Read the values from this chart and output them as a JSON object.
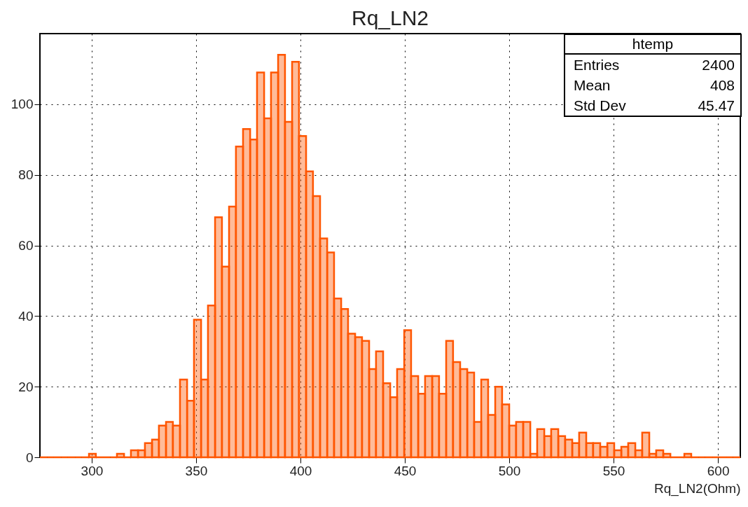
{
  "chart_data": {
    "type": "histogram",
    "title": "Rq_LN2",
    "xlabel": "Rq_LN2(Ohm)",
    "bins": [
      275.2,
      278.6,
      281.9,
      285.3,
      288.6,
      292.0,
      295.3,
      298.7,
      302.0,
      305.4,
      308.8,
      312.1,
      315.5,
      318.8,
      322.2,
      325.5,
      328.9,
      332.2,
      335.6,
      338.9,
      342.3,
      345.7,
      349.0,
      352.4,
      355.7,
      359.1,
      362.4,
      365.8,
      369.1,
      372.5,
      375.9,
      379.2,
      382.6,
      385.9,
      389.3,
      392.6,
      396.0,
      399.3,
      402.7,
      406.0,
      409.4,
      412.8,
      416.1,
      419.5,
      422.8,
      426.2,
      429.5,
      432.9,
      436.2,
      439.6,
      443.0,
      446.3,
      449.7,
      453.0,
      456.4,
      459.7,
      463.1,
      466.4,
      469.8,
      473.1,
      476.5,
      479.9,
      483.2,
      486.6,
      489.9,
      493.3,
      496.6,
      500.0,
      503.3,
      506.7,
      510.1,
      513.4,
      516.8,
      520.1,
      523.5,
      526.8,
      530.2,
      533.5,
      536.9,
      540.2,
      543.6,
      547.0,
      550.3,
      553.7,
      557.0,
      560.4,
      563.7,
      567.1,
      570.4,
      573.8,
      577.2,
      580.5,
      583.9,
      587.2,
      590.6,
      593.9,
      597.3,
      600.6,
      604.0,
      607.3,
      610.7
    ],
    "values": [
      0,
      0,
      0,
      0,
      0,
      0,
      0,
      1,
      0,
      0,
      0,
      1,
      0,
      2,
      2,
      4,
      5,
      9,
      10,
      9,
      22,
      16,
      39,
      22,
      43,
      68,
      54,
      71,
      88,
      93,
      90,
      109,
      96,
      109,
      114,
      95,
      112,
      91,
      81,
      74,
      62,
      58,
      45,
      42,
      35,
      34,
      33,
      25,
      30,
      21,
      17,
      25,
      36,
      23,
      18,
      23,
      23,
      18,
      33,
      27,
      25,
      24,
      10,
      22,
      12,
      20,
      15,
      9,
      10,
      10,
      1,
      8,
      6,
      8,
      6,
      5,
      4,
      7,
      4,
      4,
      3,
      4,
      2,
      3,
      4,
      2,
      7,
      1,
      2,
      1,
      0,
      0,
      1,
      0,
      0,
      0,
      0,
      0,
      0,
      0
    ],
    "color": "#ff5500",
    "xlim": [
      275.2,
      610.7
    ],
    "xticks": [
      300,
      350,
      400,
      450,
      500,
      550,
      600
    ],
    "ylim": [
      0,
      120
    ],
    "yticks": [
      0,
      20,
      40,
      60,
      80,
      100
    ],
    "grid": true,
    "annotations": [
      "htemp",
      "Entries",
      "2400",
      "Mean",
      "408",
      "Std Dev",
      "45.47"
    ]
  }
}
